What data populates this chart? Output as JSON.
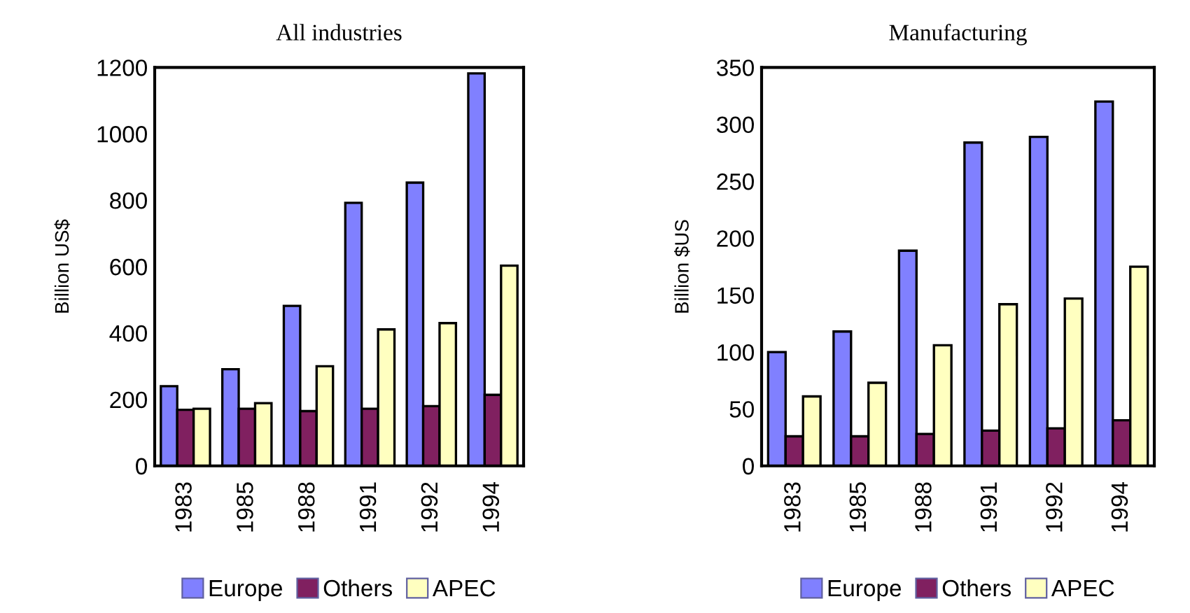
{
  "chart_data": [
    {
      "type": "bar",
      "title": "All industries",
      "ylabel": "Billion US$",
      "categories": [
        "1983",
        "1985",
        "1988",
        "1991",
        "1992",
        "1994"
      ],
      "series": [
        {
          "name": "Europe",
          "color": "#8080ff",
          "values": [
            240,
            291,
            482,
            792,
            853,
            1182
          ]
        },
        {
          "name": "Others",
          "color": "#802060",
          "values": [
            169,
            172,
            165,
            172,
            180,
            214
          ]
        },
        {
          "name": "APEC",
          "color": "#ffffc0",
          "values": [
            172,
            189,
            300,
            411,
            430,
            603
          ]
        }
      ],
      "ylim": [
        0,
        1200
      ],
      "yticks": [
        0,
        200,
        400,
        600,
        800,
        1000,
        1200
      ],
      "grid": false,
      "legend": "bottom"
    },
    {
      "type": "bar",
      "title": "Manufacturing",
      "ylabel": "Billion $US",
      "categories": [
        "1983",
        "1985",
        "1988",
        "1991",
        "1992",
        "1994"
      ],
      "series": [
        {
          "name": "Europe",
          "color": "#8080ff",
          "values": [
            100,
            118,
            189,
            284,
            289,
            320
          ]
        },
        {
          "name": "Others",
          "color": "#802060",
          "values": [
            26,
            26,
            28,
            31,
            33,
            40
          ]
        },
        {
          "name": "APEC",
          "color": "#ffffc0",
          "values": [
            61,
            73,
            106,
            142,
            147,
            175
          ]
        }
      ],
      "ylim": [
        0,
        350
      ],
      "yticks": [
        0,
        50,
        100,
        150,
        200,
        250,
        300,
        350
      ],
      "grid": false,
      "legend": "bottom"
    }
  ]
}
